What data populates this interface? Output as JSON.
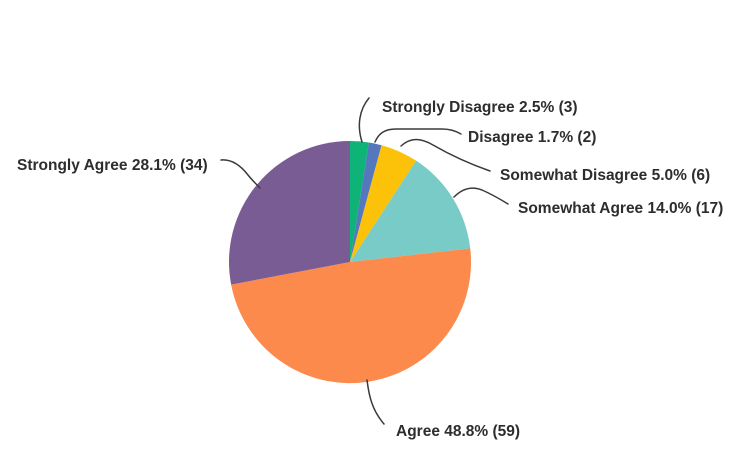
{
  "chart_data": {
    "type": "pie",
    "title": "",
    "direction": "clockwise",
    "start_angle_deg_from_top": 0,
    "legend_position": "none",
    "labels_style": "outside-with-leader-lines",
    "background_color": "#ffffff",
    "label_text_color": "#2d2d2d",
    "leader_line_color": "#3a3a3a",
    "slices": [
      {
        "label": "Strongly Disagree",
        "percent": 2.5,
        "count": 3,
        "color": "#0db377",
        "display": "Strongly Disagree 2.5% (3)"
      },
      {
        "label": "Disagree",
        "percent": 1.7,
        "count": 2,
        "color": "#5577bd",
        "display": "Disagree 1.7% (2)"
      },
      {
        "label": "Somewhat Disagree",
        "percent": 5.0,
        "count": 6,
        "color": "#fcc20a",
        "display": "Somewhat Disagree 5.0% (6)"
      },
      {
        "label": "Somewhat Agree",
        "percent": 14.0,
        "count": 17,
        "color": "#79cbc8",
        "display": "Somewhat Agree 14.0% (17)"
      },
      {
        "label": "Agree",
        "percent": 48.8,
        "count": 59,
        "color": "#fb8a4c",
        "display": "Agree 48.8% (59)"
      },
      {
        "label": "Strongly Agree",
        "percent": 28.1,
        "count": 34,
        "color": "#7a5c95",
        "display": "Strongly Agree 28.1% (34)"
      }
    ]
  }
}
